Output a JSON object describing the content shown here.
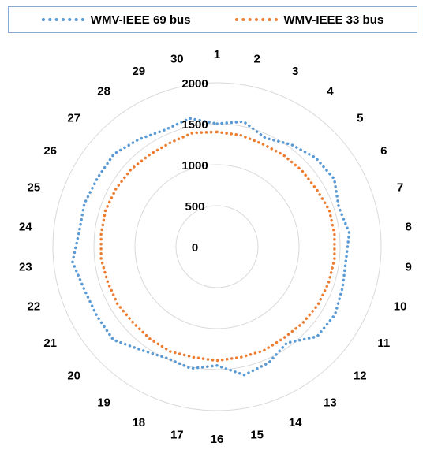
{
  "chart_data": {
    "type": "radar",
    "categories": [
      "1",
      "2",
      "3",
      "4",
      "5",
      "6",
      "7",
      "8",
      "9",
      "10",
      "11",
      "12",
      "13",
      "14",
      "15",
      "16",
      "17",
      "18",
      "19",
      "20",
      "21",
      "22",
      "23",
      "24",
      "25",
      "26",
      "27",
      "28",
      "29",
      "30"
    ],
    "radial_ticks": [
      0,
      500,
      1000,
      1500,
      2000
    ],
    "rlim": [
      0,
      2000
    ],
    "grid": true,
    "legend_position": "top",
    "series": [
      {
        "name": "WMV-IEEE 69 bus",
        "color": "#5b9bd5",
        "values": [
          1500,
          1560,
          1450,
          1540,
          1620,
          1650,
          1560,
          1620,
          1580,
          1610,
          1660,
          1640,
          1450,
          1550,
          1600,
          1450,
          1520,
          1490,
          1560,
          1700,
          1690,
          1700,
          1770,
          1690,
          1700,
          1680,
          1690,
          1620,
          1560,
          1600
        ]
      },
      {
        "name": "WMV-IEEE 33 bus",
        "color": "#ed7d31",
        "values": [
          1400,
          1390,
          1370,
          1380,
          1390,
          1400,
          1440,
          1440,
          1440,
          1430,
          1420,
          1400,
          1380,
          1390,
          1380,
          1390,
          1380,
          1400,
          1390,
          1380,
          1400,
          1400,
          1420,
          1420,
          1430,
          1420,
          1410,
          1390,
          1390,
          1420
        ]
      }
    ]
  }
}
